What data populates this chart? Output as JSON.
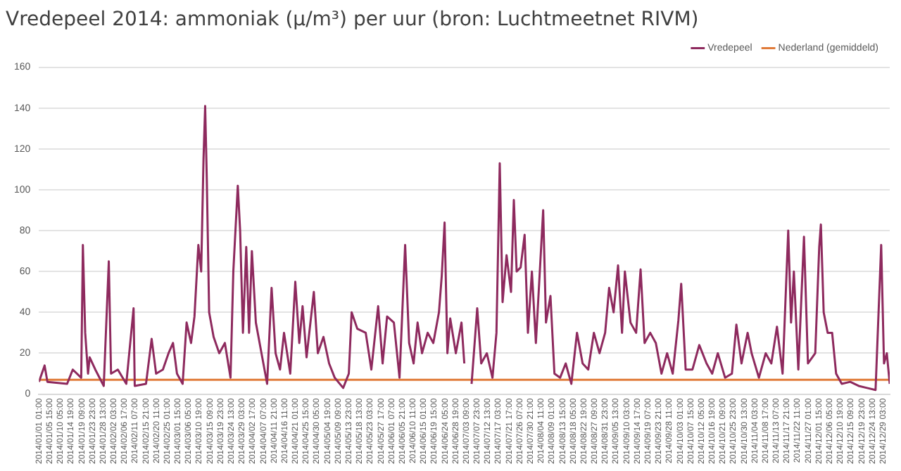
{
  "chart_data": {
    "type": "line",
    "title": "Vredepeel 2014: ammoniak (μ/m³) per uur (bron: Luchtmeetnet RIVM)",
    "xlim": [
      "2014-01-01T00:00",
      "2014-12-31T23:00"
    ],
    "xticks": [
      {
        "value": "2014-01-01T01:00",
        "label": "2014/01/01 01:00"
      },
      {
        "value": "2014-01-05T15:00",
        "label": "2014/01/05 15:00"
      },
      {
        "value": "2014-01-10T05:00",
        "label": "2014/01/10 05:00"
      },
      {
        "value": "2014-01-14T19:00",
        "label": "2014/01/14 19:00"
      },
      {
        "value": "2014-01-19T09:00",
        "label": "2014/01/19 09:00"
      },
      {
        "value": "2014-01-23T23:00",
        "label": "2014/01/23 23:00"
      },
      {
        "value": "2014-01-28T13:00",
        "label": "2014/01/28 13:00"
      },
      {
        "value": "2014-02-02T03:00",
        "label": "2014/02/02 03:00"
      },
      {
        "value": "2014-02-06T17:00",
        "label": "2014/02/06 17:00"
      },
      {
        "value": "2014-02-11T07:00",
        "label": "2014/02/11 07:00"
      },
      {
        "value": "2014-02-15T21:00",
        "label": "2014/02/15 21:00"
      },
      {
        "value": "2014-02-20T11:00",
        "label": "2014/02/20 11:00"
      },
      {
        "value": "2014-02-25T01:00",
        "label": "2014/02/25 01:00"
      },
      {
        "value": "2014-03-01T15:00",
        "label": "2014/03/01 15:00"
      },
      {
        "value": "2014-03-06T05:00",
        "label": "2014/03/06 05:00"
      },
      {
        "value": "2014-03-10T19:00",
        "label": "2014/03/10 19:00"
      },
      {
        "value": "2014-03-15T09:00",
        "label": "2014/03/15 09:00"
      },
      {
        "value": "2014-03-19T23:00",
        "label": "2014/03/19 23:00"
      },
      {
        "value": "2014-03-24T13:00",
        "label": "2014/03/24 13:00"
      },
      {
        "value": "2014-03-29T03:00",
        "label": "2014/03/29 03:00"
      },
      {
        "value": "2014-04-02T17:00",
        "label": "2014/04/02 17:00"
      },
      {
        "value": "2014-04-07T07:00",
        "label": "2014/04/07 07:00"
      },
      {
        "value": "2014-04-11T21:00",
        "label": "2014/04/11 21:00"
      },
      {
        "value": "2014-04-16T11:00",
        "label": "2014/04/16 11:00"
      },
      {
        "value": "2014-04-21T01:00",
        "label": "2014/04/21 01:00"
      },
      {
        "value": "2014-04-25T15:00",
        "label": "2014/04/25 15:00"
      },
      {
        "value": "2014-04-30T05:00",
        "label": "2014/04/30 05:00"
      },
      {
        "value": "2014-05-04T19:00",
        "label": "2014/05/04 19:00"
      },
      {
        "value": "2014-05-09T09:00",
        "label": "2014/05/09 09:00"
      },
      {
        "value": "2014-05-13T23:00",
        "label": "2014/05/13 23:00"
      },
      {
        "value": "2014-05-18T13:00",
        "label": "2014/05/18 13:00"
      },
      {
        "value": "2014-05-23T03:00",
        "label": "2014/05/23 03:00"
      },
      {
        "value": "2014-05-27T17:00",
        "label": "2014/05/27 17:00"
      },
      {
        "value": "2014-06-01T07:00",
        "label": "2014/06/01 07:00"
      },
      {
        "value": "2014-06-05T21:00",
        "label": "2014/06/05 21:00"
      },
      {
        "value": "2014-06-10T11:00",
        "label": "2014/06/10 11:00"
      },
      {
        "value": "2014-06-15T01:00",
        "label": "2014/06/15 01:00"
      },
      {
        "value": "2014-06-19T15:00",
        "label": "2014/06/19 15:00"
      },
      {
        "value": "2014-06-24T05:00",
        "label": "2014/06/24 05:00"
      },
      {
        "value": "2014-06-28T19:00",
        "label": "2014/06/28 19:00"
      },
      {
        "value": "2014-07-03T09:00",
        "label": "2014/07/03 09:00"
      },
      {
        "value": "2014-07-07T23:00",
        "label": "2014/07/07 23:00"
      },
      {
        "value": "2014-07-12T13:00",
        "label": "2014/07/12 13:00"
      },
      {
        "value": "2014-07-17T03:00",
        "label": "2014/07/17 03:00"
      },
      {
        "value": "2014-07-21T17:00",
        "label": "2014/07/21 17:00"
      },
      {
        "value": "2014-07-26T07:00",
        "label": "2014/07/26 07:00"
      },
      {
        "value": "2014-07-30T21:00",
        "label": "2014/07/30 21:00"
      },
      {
        "value": "2014-08-04T11:00",
        "label": "2014/08/04 11:00"
      },
      {
        "value": "2014-08-09T01:00",
        "label": "2014/08/09 01:00"
      },
      {
        "value": "2014-08-13T15:00",
        "label": "2014/08/13 15:00"
      },
      {
        "value": "2014-08-18T05:00",
        "label": "2014/08/18 05:00"
      },
      {
        "value": "2014-08-22T19:00",
        "label": "2014/08/22 19:00"
      },
      {
        "value": "2014-08-27T09:00",
        "label": "2014/08/27 09:00"
      },
      {
        "value": "2014-08-31T23:00",
        "label": "2014/08/31 23:00"
      },
      {
        "value": "2014-09-05T13:00",
        "label": "2014/09/05 13:00"
      },
      {
        "value": "2014-09-10T03:00",
        "label": "2014/09/10 03:00"
      },
      {
        "value": "2014-09-14T17:00",
        "label": "2014/09/14 17:00"
      },
      {
        "value": "2014-09-19T07:00",
        "label": "2014/09/19 07:00"
      },
      {
        "value": "2014-09-23T21:00",
        "label": "2014/09/23 21:00"
      },
      {
        "value": "2014-09-28T11:00",
        "label": "2014/09/28 11:00"
      },
      {
        "value": "2014-10-03T01:00",
        "label": "2014/10/03 01:00"
      },
      {
        "value": "2014-10-07T15:00",
        "label": "2014/10/07 15:00"
      },
      {
        "value": "2014-10-12T05:00",
        "label": "2014/10/12 05:00"
      },
      {
        "value": "2014-10-16T19:00",
        "label": "2014/10/16 19:00"
      },
      {
        "value": "2014-10-21T09:00",
        "label": "2014/10/21 09:00"
      },
      {
        "value": "2014-10-25T23:00",
        "label": "2014/10/25 23:00"
      },
      {
        "value": "2014-10-30T13:00",
        "label": "2014/10/30 13:00"
      },
      {
        "value": "2014-11-04T03:00",
        "label": "2014/11/04 03:00"
      },
      {
        "value": "2014-11-08T17:00",
        "label": "2014/11/08 17:00"
      },
      {
        "value": "2014-11-13T07:00",
        "label": "2014/11/13 07:00"
      },
      {
        "value": "2014-11-17T21:00",
        "label": "2014/11/17 21:00"
      },
      {
        "value": "2014-11-22T11:00",
        "label": "2014/11/22 11:00"
      },
      {
        "value": "2014-11-27T01:00",
        "label": "2014/11/27 01:00"
      },
      {
        "value": "2014-12-01T15:00",
        "label": "2014/12/01 15:00"
      },
      {
        "value": "2014-12-06T05:00",
        "label": "2014/12/06 05:00"
      },
      {
        "value": "2014-12-10T19:00",
        "label": "2014/12/10 19:00"
      },
      {
        "value": "2014-12-15T09:00",
        "label": "2014/12/15 09:00"
      },
      {
        "value": "2014-12-19T23:00",
        "label": "2014/12/19 23:00"
      },
      {
        "value": "2014-12-24T13:00",
        "label": "2014/12/24 13:00"
      },
      {
        "value": "2014-12-29T03:00",
        "label": "2014/12/29 03:00"
      }
    ],
    "ylim": [
      0,
      160
    ],
    "yticks": [
      0,
      20,
      40,
      60,
      80,
      100,
      120,
      140,
      160
    ],
    "grid": "y",
    "legend": "top right",
    "marker": "none",
    "line_style": "solid",
    "series": [
      {
        "name": "Vredepeel",
        "color": "#8e2a5e",
        "x": [
          "2014-01-01T00:00",
          "2014-01-03T10:00",
          "2014-01-04T15:00",
          "2014-01-13T02:00",
          "2014-01-15T12:00",
          "2014-01-19T03:00",
          "2014-01-19T20:00",
          "2014-01-20T20:00",
          "2014-01-22T01:00",
          "2014-01-22T18:00",
          "2014-01-25T04:00",
          "2014-01-28T19:00",
          "2014-01-30T23:00",
          "2014-01-31T22:00",
          "2014-02-03T20:00",
          "2014-02-07T11:00",
          "2014-02-10T14:00",
          "2014-02-11T02:00",
          "2014-02-15T22:00",
          "2014-02-18T08:00",
          "2014-02-20T06:00",
          "2014-02-23T04:00",
          "2014-02-25T14:00",
          "2014-02-27T12:00",
          "2014-03-01T05:00",
          "2014-03-03T15:00",
          "2014-03-05T08:00",
          "2014-03-07T06:00",
          "2014-03-08T17:00",
          "2014-03-10T09:00",
          "2014-03-11T14:00",
          "2014-03-12T14:00",
          "2014-03-13T07:00",
          "2014-03-14T00:00",
          "2014-03-15T00:00",
          "2014-03-16T22:00",
          "2014-03-19T08:00",
          "2014-03-21T18:00",
          "2014-03-24T04:00",
          "2014-03-25T09:00",
          "2014-03-27T07:00",
          "2014-03-28T07:00",
          "2014-03-29T12:00",
          "2014-03-30T22:00",
          "2014-04-01T03:00",
          "2014-04-02T08:00",
          "2014-04-04T01:00",
          "2014-04-06T11:00",
          "2014-04-08T21:00",
          "2014-04-10T19:00",
          "2014-04-12T12:00",
          "2014-04-14T10:00",
          "2014-04-16T03:00",
          "2014-04-18T19:00",
          "2014-04-20T23:00",
          "2014-04-22T16:00",
          "2014-04-24T02:00",
          "2014-04-25T19:00",
          "2014-04-28T22:00",
          "2014-04-30T15:00",
          "2014-05-03T01:00",
          "2014-05-05T11:00",
          "2014-05-07T21:00",
          "2014-05-11T12:00",
          "2014-05-13T22:00",
          "2014-05-15T03:00",
          "2014-05-17T13:00",
          "2014-05-21T04:00",
          "2014-05-23T14:00",
          "2014-05-26T12:00",
          "2014-05-28T10:00",
          "2014-05-30T08:00",
          "2014-06-02T06:00",
          "2014-06-04T16:00",
          "2014-06-07T02:00",
          "2014-06-08T19:00",
          "2014-06-10T17:00",
          "2014-06-12T10:00",
          "2014-06-14T08:00",
          "2014-06-16T18:00",
          "2014-06-19T04:00",
          "2014-06-21T14:00",
          "2014-06-22T19:00",
          "2014-06-24T00:00",
          "2014-06-25T05:00",
          "2014-06-26T10:00",
          "2014-06-28T20:00",
          "2014-07-01T06:00",
          "2014-07-02T11:00",
          "2014-07-04T04:00",
          "2014-07-05T14:00",
          "2014-07-08T00:00",
          "2014-07-09T17:00",
          "2014-07-12T03:00",
          "2014-07-14T13:00",
          "2014-07-16T06:00",
          "2014-07-17T16:00",
          "2014-07-18T21:00",
          "2014-07-20T14:00",
          "2014-07-22T12:00",
          "2014-07-23T17:00",
          "2014-07-24T22:00",
          "2014-07-26T15:00",
          "2014-07-28T08:00",
          "2014-07-29T18:00",
          "2014-07-31T11:00",
          "2014-08-02T04:00",
          "2014-08-05T07:00",
          "2014-08-06T12:00",
          "2014-08-08T10:00",
          "2014-08-10T03:00",
          "2014-08-12T13:00",
          "2014-08-14T23:00",
          "2014-08-17T09:00",
          "2014-08-19T19:00",
          "2014-08-22T05:00",
          "2014-08-24T15:00",
          "2014-08-27T01:00",
          "2014-08-29T11:00",
          "2014-08-31T21:00",
          "2014-09-02T14:00",
          "2014-09-04T12:00",
          "2014-09-06T10:00",
          "2014-09-08T03:00",
          "2014-09-09T08:00",
          "2014-09-11T18:00",
          "2014-09-14T04:00",
          "2014-09-16T02:00",
          "2014-09-17T19:00",
          "2014-09-20T05:00",
          "2014-09-22T15:00",
          "2014-09-25T01:00",
          "2014-09-27T11:00",
          "2014-09-29T21:00",
          "2014-10-02T07:00",
          "2014-10-03T12:00",
          "2014-10-05T10:00",
          "2014-10-08T08:00",
          "2014-10-11T06:00",
          "2014-10-14T09:00",
          "2014-10-16T19:00",
          "2014-10-19T05:00",
          "2014-10-22T08:00",
          "2014-10-25T06:00",
          "2014-10-27T04:00",
          "2014-10-29T09:00",
          "2014-11-01T00:00",
          "2014-11-02T17:00",
          "2014-11-05T20:00",
          "2014-11-08T18:00",
          "2014-11-11T04:00",
          "2014-11-13T14:00",
          "2014-11-16T00:00",
          "2014-11-18T10:00",
          "2014-11-19T15:00",
          "2014-11-20T20:00",
          "2014-11-22T18:00",
          "2014-11-25T04:00",
          "2014-11-26T21:00",
          "2014-11-30T00:00",
          "2014-12-01T17:00",
          "2014-12-02T10:00",
          "2014-12-03T15:00",
          "2014-12-05T08:00",
          "2014-12-07T06:00",
          "2014-12-08T23:00",
          "2014-12-11T09:00",
          "2014-12-15T00:00",
          "2014-12-18T15:00",
          "2014-12-22T06:00",
          "2014-12-25T21:00",
          "2014-12-28T07:00",
          "2014-12-29T12:00",
          "2014-12-30T17:00",
          "2014-12-31T23:00"
        ],
        "values": [
          6,
          14,
          6,
          5,
          12,
          8,
          73,
          30,
          10,
          18,
          12,
          4,
          65,
          10,
          12,
          5,
          42,
          4,
          5,
          27,
          10,
          12,
          20,
          25,
          10,
          5,
          35,
          25,
          38,
          73,
          60,
          115,
          141,
          105,
          40,
          28,
          20,
          25,
          8,
          60,
          102,
          80,
          30,
          72,
          30,
          70,
          35,
          20,
          5,
          52,
          20,
          12,
          30,
          10,
          55,
          25,
          43,
          18,
          50,
          20,
          28,
          15,
          8,
          3,
          10,
          40,
          32,
          30,
          12,
          43,
          15,
          38,
          35,
          8,
          73,
          25,
          15,
          35,
          20,
          30,
          25,
          40,
          58,
          84,
          20,
          37,
          20,
          35,
          15,
          null,
          5,
          42,
          15,
          20,
          8,
          30,
          113,
          45,
          68,
          50,
          95,
          60,
          62,
          78,
          30,
          60,
          25,
          90,
          35,
          48,
          10,
          8,
          15,
          5,
          30,
          15,
          12,
          30,
          20,
          30,
          52,
          40,
          63,
          30,
          60,
          35,
          30,
          61,
          25,
          30,
          25,
          10,
          20,
          10,
          36,
          54,
          12,
          12,
          24,
          15,
          10,
          20,
          8,
          10,
          34,
          15,
          30,
          20,
          8,
          20,
          15,
          33,
          10,
          80,
          35,
          60,
          12,
          77,
          15,
          20,
          72,
          83,
          40,
          30,
          30,
          10,
          5,
          6,
          4,
          3,
          2,
          73,
          15,
          20,
          5
        ]
      },
      {
        "name": "Nederland (gemiddeld)",
        "color": "#e07b39",
        "x": [
          "2014-01-01T00:00",
          "2014-12-31T23:00"
        ],
        "values": [
          7,
          7
        ]
      }
    ]
  }
}
